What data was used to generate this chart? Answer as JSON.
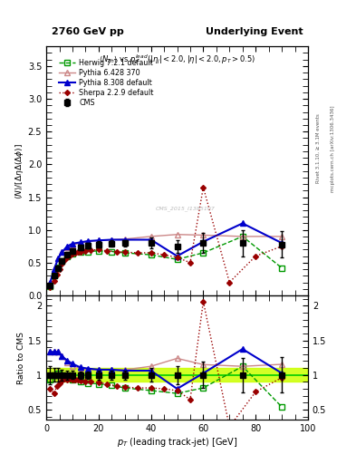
{
  "title_left": "2760 GeV pp",
  "title_right": "Underlying Event",
  "plot_title": "$\\langle N_{ch}\\rangle$ vs $p_T^{lead}(|\\eta_j|<2.0, |\\eta|<2.0, p_T>0.5)$",
  "ylabel_main": "$\\langle N\\rangle/[\\Delta\\eta\\Delta(\\Delta\\phi)]$",
  "ylabel_ratio": "Ratio to CMS",
  "xlabel": "$p_T$ (leading track-jet) [GeV]",
  "watermark": "CMS_2015_I1385107",
  "ylim_main": [
    0.0,
    3.8
  ],
  "ylim_ratio": [
    0.35,
    2.15
  ],
  "xlim": [
    0,
    100
  ],
  "cms_x": [
    1.5,
    3.0,
    4.5,
    6.0,
    8.0,
    10.0,
    13.0,
    16.0,
    20.0,
    25.0,
    30.0,
    40.0,
    50.0,
    60.0,
    75.0,
    90.0
  ],
  "cms_y": [
    0.15,
    0.3,
    0.42,
    0.52,
    0.62,
    0.68,
    0.73,
    0.76,
    0.78,
    0.79,
    0.8,
    0.8,
    0.75,
    0.8,
    0.8,
    0.78
  ],
  "cms_yerr": [
    0.02,
    0.03,
    0.04,
    0.04,
    0.04,
    0.04,
    0.04,
    0.04,
    0.05,
    0.05,
    0.05,
    0.08,
    0.1,
    0.15,
    0.2,
    0.2
  ],
  "herwig_x": [
    1.5,
    3.0,
    4.5,
    6.0,
    8.0,
    10.0,
    13.0,
    16.0,
    20.0,
    25.0,
    30.0,
    40.0,
    50.0,
    60.0,
    75.0,
    90.0
  ],
  "herwig_y": [
    0.14,
    0.3,
    0.43,
    0.52,
    0.6,
    0.63,
    0.66,
    0.67,
    0.68,
    0.67,
    0.65,
    0.62,
    0.55,
    0.65,
    0.9,
    0.42
  ],
  "pythia6_x": [
    1.5,
    3.0,
    4.5,
    6.0,
    8.0,
    10.0,
    13.0,
    16.0,
    20.0,
    25.0,
    30.0,
    40.0,
    50.0,
    60.0,
    75.0,
    90.0
  ],
  "pythia6_y": [
    0.2,
    0.4,
    0.56,
    0.66,
    0.73,
    0.77,
    0.8,
    0.82,
    0.84,
    0.85,
    0.86,
    0.9,
    0.93,
    0.92,
    0.9,
    0.9
  ],
  "pythia8_x": [
    1.5,
    3.0,
    4.5,
    6.0,
    8.0,
    10.0,
    13.0,
    16.0,
    20.0,
    25.0,
    30.0,
    40.0,
    50.0,
    60.0,
    75.0,
    90.0
  ],
  "pythia8_y": [
    0.2,
    0.4,
    0.56,
    0.66,
    0.75,
    0.79,
    0.81,
    0.83,
    0.84,
    0.85,
    0.85,
    0.85,
    0.6,
    0.82,
    1.1,
    0.8
  ],
  "sherpa_x": [
    1.5,
    3.0,
    4.0,
    5.0,
    6.0,
    7.0,
    8.0,
    9.0,
    10.0,
    11.0,
    12.0,
    13.0,
    15.0,
    17.0,
    20.0,
    23.0,
    27.0,
    30.0,
    35.0,
    40.0,
    45.0,
    50.0,
    55.0,
    60.0,
    70.0,
    80.0,
    90.0
  ],
  "sherpa_y": [
    0.12,
    0.22,
    0.32,
    0.4,
    0.48,
    0.54,
    0.58,
    0.61,
    0.63,
    0.65,
    0.66,
    0.67,
    0.68,
    0.69,
    0.7,
    0.68,
    0.67,
    0.66,
    0.65,
    0.65,
    0.62,
    0.58,
    0.5,
    1.65,
    0.2,
    0.6,
    0.75
  ],
  "cms_color": "#000000",
  "herwig_color": "#009900",
  "pythia6_color": "#cc8888",
  "pythia8_color": "#0000cc",
  "sherpa_color": "#990000",
  "ratio_band_color": "#ccff00",
  "ratio_line_color": "#00cc00"
}
